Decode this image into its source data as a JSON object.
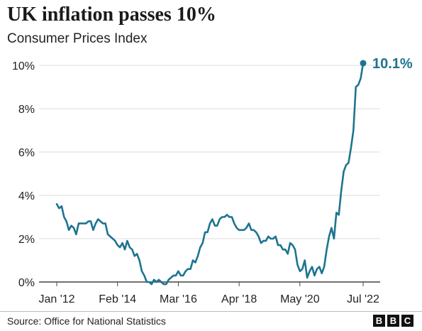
{
  "title": "UK inflation passes 10%",
  "subtitle": "Consumer Prices Index",
  "source": "Source: Office for National Statistics",
  "logo": {
    "letters": [
      "B",
      "B",
      "C"
    ]
  },
  "colors": {
    "line": "#1d7491",
    "axis": "#444444",
    "grid": "#dddddd",
    "text": "#222222"
  },
  "chart_data": {
    "type": "line",
    "title": "UK inflation passes 10%",
    "subtitle": "Consumer Prices Index",
    "xlabel": "",
    "ylabel": "",
    "ylim": [
      0,
      10
    ],
    "yticks": [
      0,
      2,
      4,
      6,
      8,
      10
    ],
    "ytick_labels": [
      "0%",
      "2%",
      "4%",
      "6%",
      "8%",
      "10%"
    ],
    "xlim": [
      "2012-01",
      "2022-07"
    ],
    "xticks": [
      "2012-01",
      "2014-02",
      "2016-03",
      "2018-04",
      "2020-05",
      "2022-07"
    ],
    "xtick_labels": [
      "Jan '12",
      "Feb '14",
      "Mar '16",
      "Apr '18",
      "May '20",
      "Jul '22"
    ],
    "grid": true,
    "end_label": "10.1%",
    "series": [
      {
        "x": [
          "2012-01",
          "2012-02",
          "2012-03",
          "2012-04",
          "2012-05",
          "2012-06",
          "2012-07",
          "2012-08",
          "2012-09",
          "2012-10",
          "2012-11",
          "2012-12",
          "2013-01",
          "2013-02",
          "2013-03",
          "2013-04",
          "2013-05",
          "2013-06",
          "2013-07",
          "2013-08",
          "2013-09",
          "2013-10",
          "2013-11",
          "2013-12",
          "2014-01",
          "2014-02",
          "2014-03",
          "2014-04",
          "2014-05",
          "2014-06",
          "2014-07",
          "2014-08",
          "2014-09",
          "2014-10",
          "2014-11",
          "2014-12",
          "2015-01",
          "2015-02",
          "2015-03",
          "2015-04",
          "2015-05",
          "2015-06",
          "2015-07",
          "2015-08",
          "2015-09",
          "2015-10",
          "2015-11",
          "2015-12",
          "2016-01",
          "2016-02",
          "2016-03",
          "2016-04",
          "2016-05",
          "2016-06",
          "2016-07",
          "2016-08",
          "2016-09",
          "2016-10",
          "2016-11",
          "2016-12",
          "2017-01",
          "2017-02",
          "2017-03",
          "2017-04",
          "2017-05",
          "2017-06",
          "2017-07",
          "2017-08",
          "2017-09",
          "2017-10",
          "2017-11",
          "2017-12",
          "2018-01",
          "2018-02",
          "2018-03",
          "2018-04",
          "2018-05",
          "2018-06",
          "2018-07",
          "2018-08",
          "2018-09",
          "2018-10",
          "2018-11",
          "2018-12",
          "2019-01",
          "2019-02",
          "2019-03",
          "2019-04",
          "2019-05",
          "2019-06",
          "2019-07",
          "2019-08",
          "2019-09",
          "2019-10",
          "2019-11",
          "2019-12",
          "2020-01",
          "2020-02",
          "2020-03",
          "2020-04",
          "2020-05",
          "2020-06",
          "2020-07",
          "2020-08",
          "2020-09",
          "2020-10",
          "2020-11",
          "2020-12",
          "2021-01",
          "2021-02",
          "2021-03",
          "2021-04",
          "2021-05",
          "2021-06",
          "2021-07",
          "2021-08",
          "2021-09",
          "2021-10",
          "2021-11",
          "2021-12",
          "2022-01",
          "2022-02",
          "2022-03",
          "2022-04",
          "2022-05",
          "2022-06",
          "2022-07"
        ],
        "values": [
          3.6,
          3.4,
          3.5,
          3.0,
          2.8,
          2.4,
          2.6,
          2.5,
          2.2,
          2.7,
          2.7,
          2.7,
          2.7,
          2.8,
          2.8,
          2.4,
          2.7,
          2.9,
          2.8,
          2.7,
          2.7,
          2.2,
          2.1,
          2.0,
          1.9,
          1.7,
          1.6,
          1.8,
          1.5,
          1.9,
          1.6,
          1.5,
          1.2,
          1.3,
          1.0,
          0.5,
          0.3,
          0.0,
          0.0,
          -0.1,
          0.1,
          0.0,
          0.1,
          0.0,
          -0.1,
          -0.1,
          0.1,
          0.2,
          0.3,
          0.3,
          0.5,
          0.3,
          0.3,
          0.5,
          0.6,
          0.6,
          1.0,
          0.9,
          1.2,
          1.6,
          1.8,
          2.3,
          2.3,
          2.7,
          2.9,
          2.6,
          2.6,
          2.9,
          3.0,
          3.0,
          3.1,
          3.0,
          3.0,
          2.7,
          2.5,
          2.4,
          2.4,
          2.4,
          2.5,
          2.7,
          2.4,
          2.4,
          2.3,
          2.1,
          1.8,
          1.9,
          1.9,
          2.1,
          2.0,
          2.0,
          2.1,
          1.7,
          1.7,
          1.5,
          1.5,
          1.3,
          1.8,
          1.7,
          1.5,
          0.8,
          0.5,
          0.6,
          1.0,
          0.2,
          0.5,
          0.7,
          0.3,
          0.6,
          0.7,
          0.4,
          0.7,
          1.5,
          2.1,
          2.5,
          2.0,
          3.2,
          3.1,
          4.2,
          5.1,
          5.4,
          5.5,
          6.2,
          7.0,
          9.0,
          9.1,
          9.4,
          10.1
        ]
      }
    ]
  }
}
